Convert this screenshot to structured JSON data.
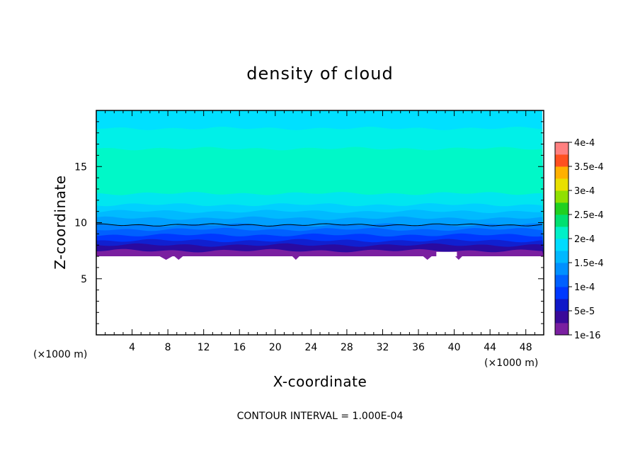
{
  "chart_data": {
    "type": "heatmap",
    "title": "density of cloud",
    "xlabel": "X-coordinate",
    "ylabel": "Z-coordinate",
    "x_unit": "(×1000 m)",
    "x_unit_right": "(×1000 m)",
    "xlim": [
      0,
      50
    ],
    "ylim": [
      0,
      20
    ],
    "x_ticks": [
      4,
      8,
      12,
      16,
      20,
      24,
      28,
      32,
      36,
      40,
      44,
      48
    ],
    "x_tick_labels": [
      "4",
      "8",
      "12",
      "16",
      "20",
      "24",
      "28",
      "32",
      "36",
      "40",
      "44",
      "48"
    ],
    "y_ticks": [
      5,
      10,
      15
    ],
    "y_tick_labels": [
      "5",
      "10",
      "15"
    ],
    "contour_interval_text": "CONTOUR INTERVAL = 1.000E-04",
    "colorbar": {
      "labels": [
        "4e-4",
        "3.5e-4",
        "3e-4",
        "2.5e-4",
        "2e-4",
        "1.5e-4",
        "1e-4",
        "5e-5",
        "1e-16"
      ],
      "colors": [
        "#ff3b3b",
        "#ff8c00",
        "#ffd700",
        "#7fff00",
        "#00d040",
        "#00f0b0",
        "#00b4ff",
        "#0050ff",
        "#7a1fa0"
      ]
    },
    "layers": [
      {
        "z_top": 7.5,
        "value": 1e-16,
        "color": "#7a1fa0"
      },
      {
        "z_top": 8.0,
        "value": 1.5e-05,
        "color": "#2a0aa0"
      },
      {
        "z_top": 8.4,
        "value": 2.5e-05,
        "color": "#1020d0"
      },
      {
        "z_top": 8.9,
        "value": 4e-05,
        "color": "#0038ff"
      },
      {
        "z_top": 9.4,
        "value": 5.5e-05,
        "color": "#0060ff"
      },
      {
        "z_top": 9.8,
        "value": 7e-05,
        "color": "#0080ff"
      },
      {
        "z_top": 10.4,
        "value": 8e-05,
        "color": "#00a0ff"
      },
      {
        "z_top": 11.0,
        "value": 9e-05,
        "color": "#00baff"
      },
      {
        "z_top": 11.6,
        "value": 0.0001,
        "color": "#00d0ff"
      },
      {
        "z_top": 12.6,
        "value": 0.00012,
        "color": "#00e6f0"
      },
      {
        "z_top": 16.6,
        "value": 0.00014,
        "color": "#00f8c8"
      },
      {
        "z_top": 18.4,
        "value": 0.000125,
        "color": "#00f0e8"
      },
      {
        "z_top": 20.0,
        "value": 0.00011,
        "color": "#00e0ff"
      }
    ],
    "cloud_base_z": 7.0,
    "contour_line_z": 9.8
  }
}
